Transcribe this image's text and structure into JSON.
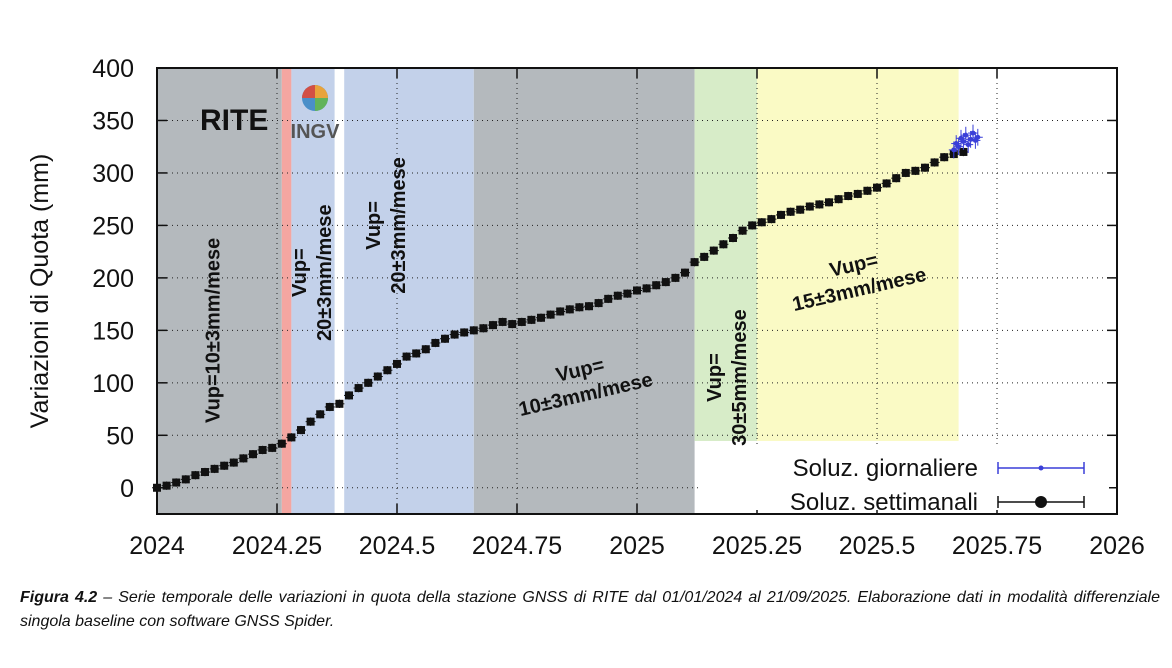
{
  "chart_data": {
    "type": "scatter",
    "station_label": "RITE",
    "logo_text": "INGV",
    "ylabel": "Variazioni di Quota (mm)",
    "xlabel": "",
    "xlim": [
      2024,
      2026
    ],
    "ylim": [
      -25,
      400
    ],
    "x_ticks": [
      {
        "value": 2024,
        "label": "2024"
      },
      {
        "value": 2024.25,
        "label": "2024.25"
      },
      {
        "value": 2024.5,
        "label": "2024.5"
      },
      {
        "value": 2024.75,
        "label": "2024.75"
      },
      {
        "value": 2025,
        "label": "2025"
      },
      {
        "value": 2025.25,
        "label": "2025.25"
      },
      {
        "value": 2025.5,
        "label": "2025.5"
      },
      {
        "value": 2025.75,
        "label": "2025.75"
      },
      {
        "value": 2026,
        "label": "2026"
      }
    ],
    "y_ticks": [
      {
        "value": 0,
        "label": "0"
      },
      {
        "value": 50,
        "label": "50"
      },
      {
        "value": 100,
        "label": "100"
      },
      {
        "value": 150,
        "label": "150"
      },
      {
        "value": 200,
        "label": "200"
      },
      {
        "value": 250,
        "label": "250"
      },
      {
        "value": 300,
        "label": "300"
      },
      {
        "value": 350,
        "label": "350"
      },
      {
        "value": 400,
        "label": "400"
      }
    ],
    "shaded_periods": [
      {
        "name": "grey-1",
        "x0": 2024.0,
        "x1": 2024.26,
        "y_top": 400,
        "color": "#b4b9bd",
        "label_lines": [
          "Vup=10±3mm/mese"
        ],
        "label_x": 2024.13,
        "label_y": 150,
        "rotation": -90
      },
      {
        "name": "red-event",
        "x0": 2024.26,
        "x1": 2024.28,
        "y_top": 400,
        "color": "#f4a6a1",
        "label_lines": [],
        "label_x": 0,
        "label_y": 0,
        "rotation": 0
      },
      {
        "name": "blue-1",
        "x0": 2024.28,
        "x1": 2024.37,
        "y_top": 400,
        "color": "#c3d1ea",
        "label_lines": [
          "Vup=",
          "20±3mm/mese"
        ],
        "label_x": 2024.335,
        "label_y": 205,
        "rotation": -90
      },
      {
        "name": "blue-2",
        "x0": 2024.39,
        "x1": 2024.66,
        "y_top": 400,
        "color": "#c3d1ea",
        "label_lines": [
          "Vup=",
          "20±3mm/mese"
        ],
        "label_x": 2024.49,
        "label_y": 250,
        "rotation": -90
      },
      {
        "name": "grey-2",
        "x0": 2024.66,
        "x1": 2025.12,
        "y_top": 400,
        "color": "#b4b9bd",
        "label_lines": [
          "Vup=",
          "10±3mm/mese"
        ],
        "label_x": 2024.89,
        "label_y": 95,
        "rotation": -13
      },
      {
        "name": "green",
        "x0": 2025.12,
        "x1": 2025.25,
        "y_top": 400,
        "color": "#d7ecc8",
        "label_lines": [
          "Vup=",
          "30±5mm/mese"
        ],
        "label_x": 2025.2,
        "label_y": 105,
        "rotation": -90
      },
      {
        "name": "yellow",
        "x0": 2025.25,
        "x1": 2025.67,
        "y_top": 400,
        "color": "#fafac5",
        "label_lines": [
          "Vup=",
          "15±3mm/mese"
        ],
        "label_x": 2025.46,
        "label_y": 195,
        "rotation": -13
      }
    ],
    "series": [
      {
        "name": "Soluz. settimanali",
        "color": "#111111",
        "marker": "square",
        "x": [
          2024.0,
          2024.02,
          2024.04,
          2024.06,
          2024.08,
          2024.1,
          2024.12,
          2024.14,
          2024.16,
          2024.18,
          2024.2,
          2024.22,
          2024.24,
          2024.26,
          2024.28,
          2024.3,
          2024.32,
          2024.34,
          2024.36,
          2024.38,
          2024.4,
          2024.42,
          2024.44,
          2024.46,
          2024.48,
          2024.5,
          2024.52,
          2024.54,
          2024.56,
          2024.58,
          2024.6,
          2024.62,
          2024.64,
          2024.66,
          2024.68,
          2024.7,
          2024.72,
          2024.74,
          2024.76,
          2024.78,
          2024.8,
          2024.82,
          2024.84,
          2024.86,
          2024.88,
          2024.9,
          2024.92,
          2024.94,
          2024.96,
          2024.98,
          2025.0,
          2025.02,
          2025.04,
          2025.06,
          2025.08,
          2025.1,
          2025.12,
          2025.14,
          2025.16,
          2025.18,
          2025.2,
          2025.22,
          2025.24,
          2025.26,
          2025.28,
          2025.3,
          2025.32,
          2025.34,
          2025.36,
          2025.38,
          2025.4,
          2025.42,
          2025.44,
          2025.46,
          2025.48,
          2025.5,
          2025.52,
          2025.54,
          2025.56,
          2025.58,
          2025.6,
          2025.62,
          2025.64,
          2025.66,
          2025.68
        ],
        "values": [
          0,
          2,
          5,
          8,
          12,
          15,
          18,
          21,
          24,
          28,
          32,
          36,
          38,
          42,
          48,
          55,
          63,
          70,
          77,
          80,
          88,
          95,
          100,
          106,
          112,
          118,
          125,
          128,
          132,
          138,
          142,
          146,
          148,
          150,
          152,
          155,
          158,
          156,
          158,
          160,
          162,
          165,
          168,
          170,
          172,
          173,
          176,
          180,
          183,
          185,
          188,
          190,
          193,
          196,
          200,
          205,
          215,
          220,
          226,
          232,
          238,
          245,
          250,
          253,
          256,
          260,
          263,
          265,
          268,
          270,
          272,
          275,
          278,
          280,
          283,
          286,
          290,
          295,
          300,
          302,
          305,
          310,
          315,
          318,
          320
        ],
        "error": 4
      },
      {
        "name": "Soluz. giornaliere",
        "color": "#3a3fd8",
        "marker": "dot",
        "x": [
          2025.66,
          2025.665,
          2025.67,
          2025.675,
          2025.68,
          2025.685,
          2025.69,
          2025.695,
          2025.7,
          2025.705,
          2025.71
        ],
        "values": [
          322,
          328,
          325,
          333,
          330,
          336,
          327,
          332,
          338,
          331,
          334
        ],
        "error": 8
      }
    ],
    "legend": {
      "placement": "bottom-right",
      "entries": [
        "Soluz. giornaliere",
        "Soluz. settimanali"
      ]
    }
  },
  "caption": {
    "figure_label": "Figura 4.2",
    "text": "– Serie temporale delle variazioni in quota della stazione GNSS di RITE dal 01/01/2024 al 21/09/2025. Elaborazione dati in modalità differenziale singola baseline con software GNSS Spider."
  }
}
